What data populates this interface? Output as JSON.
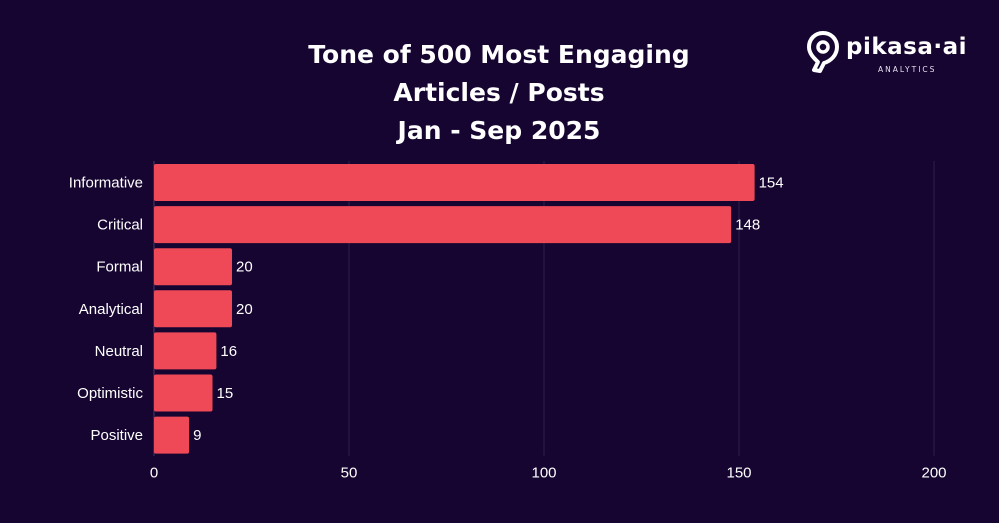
{
  "brand": {
    "wordmark": "pikasa·ai",
    "subtitle": "ANALYTICS",
    "accent_color": "#ef4856"
  },
  "chart_data": {
    "type": "bar",
    "orientation": "horizontal",
    "title": "Tone of 500 Most Engaging\nArticles / Posts\nJan - Sep 2025",
    "categories": [
      "Informative",
      "Critical",
      "Formal",
      "Analytical",
      "Neutral",
      "Optimistic",
      "Positive"
    ],
    "values": [
      154,
      148,
      20,
      20,
      16,
      15,
      9
    ],
    "xlabel": "",
    "ylabel": "",
    "xlim": [
      0,
      200
    ],
    "xticks": [
      0,
      50,
      100,
      150,
      200
    ],
    "grid": true,
    "data_labels": true,
    "bar_color": "#ef4856",
    "background_color": "#150530"
  }
}
